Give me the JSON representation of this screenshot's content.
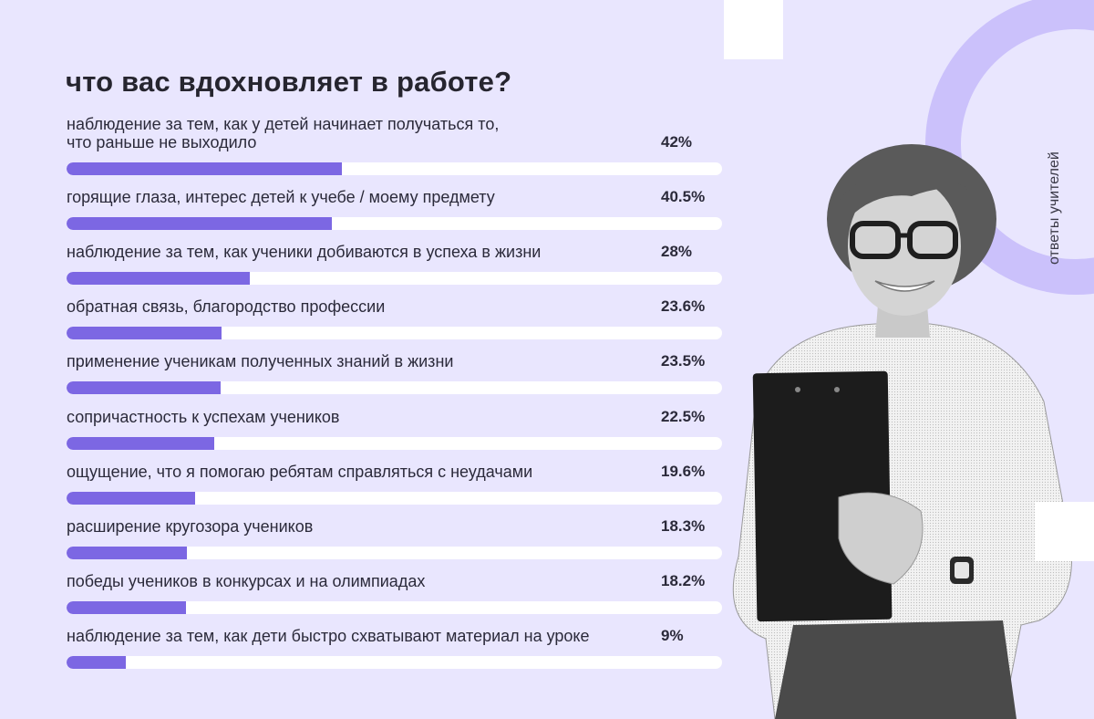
{
  "title": "что вас вдохновляет в работе?",
  "side_caption": "ответы учителей",
  "colors": {
    "background": "#e9e6fe",
    "bar": "#7c67e3",
    "track": "#ffffff",
    "ring": "#cbc1fb"
  },
  "decor": {
    "photo": "teacher-holding-clipboard"
  },
  "chart_data": {
    "type": "bar",
    "orientation": "horizontal",
    "title": "что вас вдохновляет в работе?",
    "unit": "%",
    "xlim": [
      0,
      100
    ],
    "categories": [
      "наблюдение за тем, как у детей начинает получаться то,\nчто раньше не выходило",
      "горящие глаза, интерес детей к учебе / моему предмету",
      "наблюдение за тем, как ученики добиваются в успеха в жизни",
      "обратная связь, благородство профессии",
      "применение ученикам полученных знаний в жизни",
      "сопричастность к успехам учеников",
      "ощущение, что я помогаю ребятам справляться с неудачами",
      "расширение кругозора учеников",
      "победы учеников в конкурсах и на олимпиадах",
      "наблюдение за тем, как дети быстро схватывают материал на уроке"
    ],
    "values": [
      42,
      40.5,
      28,
      23.6,
      23.5,
      22.5,
      19.6,
      18.3,
      18.2,
      9
    ],
    "value_labels": [
      "42%",
      "40.5%",
      "28%",
      "23.6%",
      "23.5%",
      "22.5%",
      "19.6%",
      "18.3%",
      "18.2%",
      "9%"
    ]
  }
}
